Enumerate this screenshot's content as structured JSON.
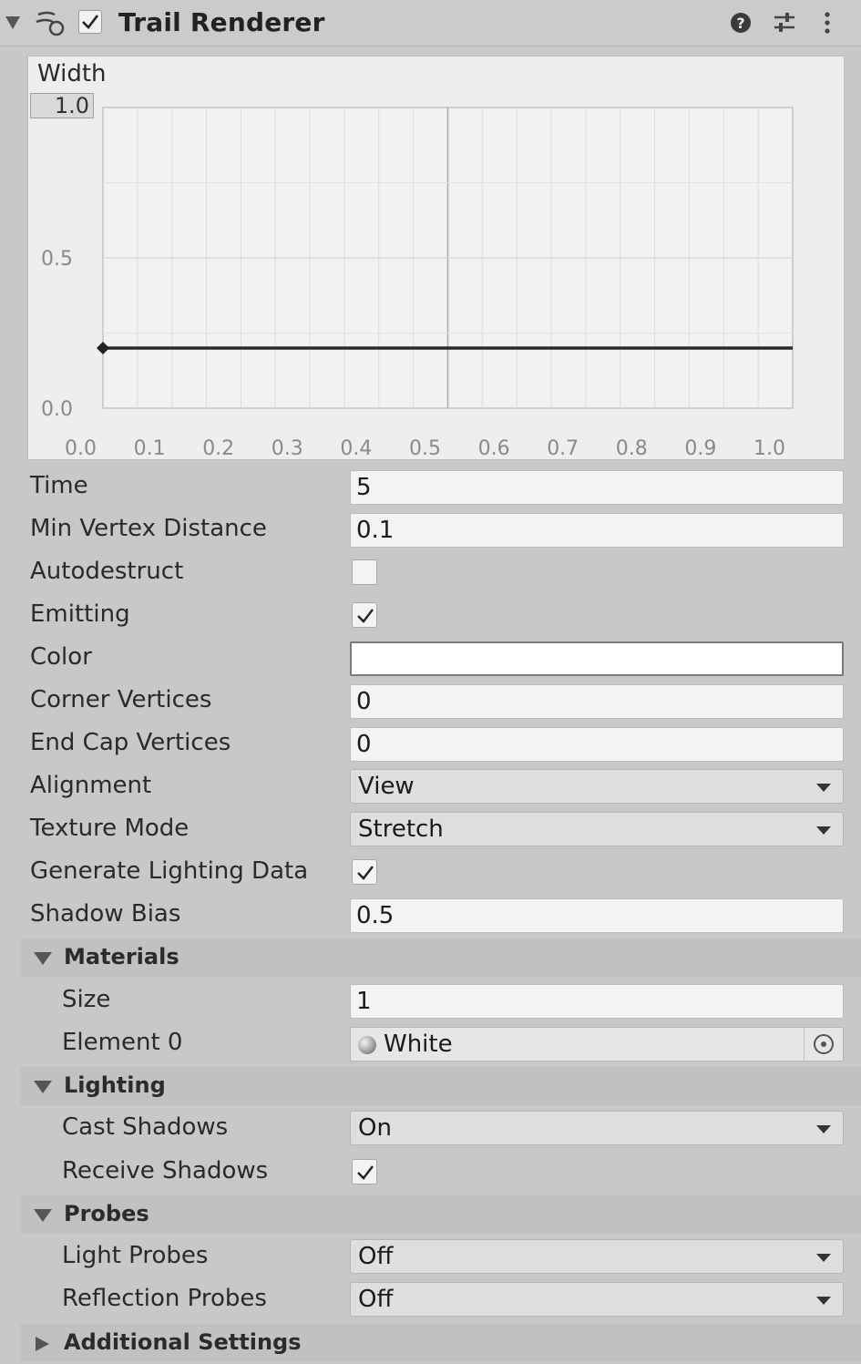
{
  "header": {
    "title": "Trail Renderer",
    "enabled": true,
    "icons": [
      "fold-arrow-icon",
      "trail-renderer-icon",
      "help-icon",
      "presets-icon",
      "more-icon"
    ]
  },
  "curve": {
    "title": "Width",
    "top_value": "1.0",
    "y_ticks": [
      "1.0",
      "0.5",
      "0.0"
    ],
    "x_ticks": [
      "0.0",
      "0.1",
      "0.2",
      "0.3",
      "0.4",
      "0.5",
      "0.6",
      "0.7",
      "0.8",
      "0.9",
      "1.0"
    ],
    "keys": [
      {
        "time": 0.0,
        "value": 0.2
      },
      {
        "time": 1.0,
        "value": 0.2
      }
    ]
  },
  "properties": {
    "time": {
      "label": "Time",
      "value": "5"
    },
    "min_vertex_distance": {
      "label": "Min Vertex Distance",
      "value": "0.1"
    },
    "autodestruct": {
      "label": "Autodestruct",
      "checked": false
    },
    "emitting": {
      "label": "Emitting",
      "checked": true
    },
    "color": {
      "label": "Color",
      "value": "#ffffff"
    },
    "corner_vertices": {
      "label": "Corner Vertices",
      "value": "0"
    },
    "end_cap_vertices": {
      "label": "End Cap Vertices",
      "value": "0"
    },
    "alignment": {
      "label": "Alignment",
      "value": "View"
    },
    "texture_mode": {
      "label": "Texture Mode",
      "value": "Stretch"
    },
    "generate_lighting_data": {
      "label": "Generate Lighting Data",
      "checked": true
    },
    "shadow_bias": {
      "label": "Shadow Bias",
      "value": "0.5"
    }
  },
  "materials": {
    "title": "Materials",
    "size": {
      "label": "Size",
      "value": "1"
    },
    "element0": {
      "label": "Element 0",
      "value": "White"
    }
  },
  "lighting": {
    "title": "Lighting",
    "cast_shadows": {
      "label": "Cast Shadows",
      "value": "On"
    },
    "receive_shadows": {
      "label": "Receive Shadows",
      "checked": true
    }
  },
  "probes": {
    "title": "Probes",
    "light_probes": {
      "label": "Light Probes",
      "value": "Off"
    },
    "reflection_probes": {
      "label": "Reflection Probes",
      "value": "Off"
    }
  },
  "additional_settings": {
    "title": "Additional Settings"
  },
  "colors": {
    "panel_bg": "#c8c8c8",
    "field_bg": "#f3f3f3",
    "curve_line": "#2a2a2a"
  }
}
